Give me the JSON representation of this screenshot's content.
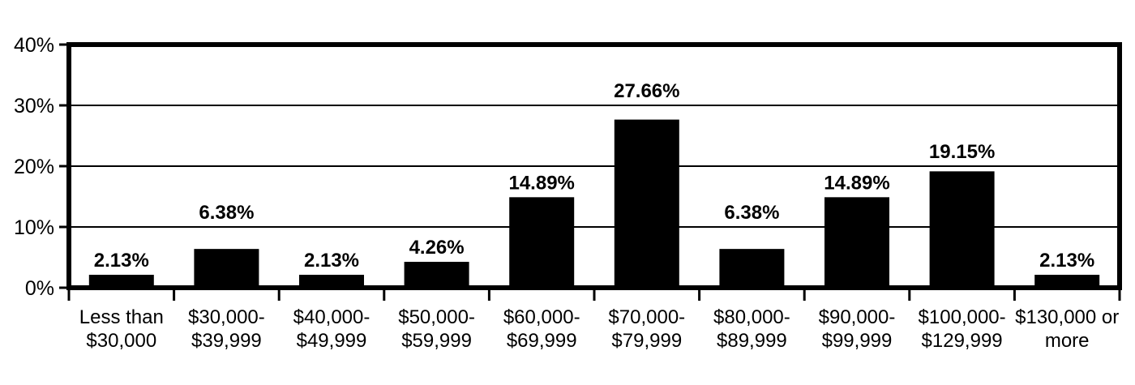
{
  "chart_data": {
    "type": "bar",
    "title": "",
    "categories": [
      [
        "Less than",
        "$30,000"
      ],
      [
        "$30,000-",
        "$39,999"
      ],
      [
        "$40,000-",
        "$49,999"
      ],
      [
        "$50,000-",
        "$59,999"
      ],
      [
        "$60,000-",
        "$69,999"
      ],
      [
        "$70,000-",
        "$79,999"
      ],
      [
        "$80,000-",
        "$89,999"
      ],
      [
        "$90,000-",
        "$99,999"
      ],
      [
        "$100,000-",
        "$129,999"
      ],
      [
        "$130,000 or",
        "more"
      ]
    ],
    "values": [
      2.13,
      6.38,
      2.13,
      4.26,
      14.89,
      27.66,
      6.38,
      14.89,
      19.15,
      2.13
    ],
    "bar_labels": [
      "2.13%",
      "6.38%",
      "2.13%",
      "4.26%",
      "14.89%",
      "27.66%",
      "6.38%",
      "14.89%",
      "19.15%",
      "2.13%"
    ],
    "xlabel": "",
    "ylabel": "",
    "y_axis": {
      "min": 0,
      "max": 40,
      "ticks": [
        {
          "value": 0,
          "label": "0%"
        },
        {
          "value": 10,
          "label": "10%"
        },
        {
          "value": 20,
          "label": "20%"
        },
        {
          "value": 30,
          "label": "30%"
        },
        {
          "value": 40,
          "label": "40%"
        }
      ]
    },
    "grid": true,
    "legend": false,
    "colors": {
      "bar": "#000000",
      "axis": "#000000",
      "gridline": "#000000",
      "label_text": "#000000",
      "background": "#ffffff"
    }
  }
}
